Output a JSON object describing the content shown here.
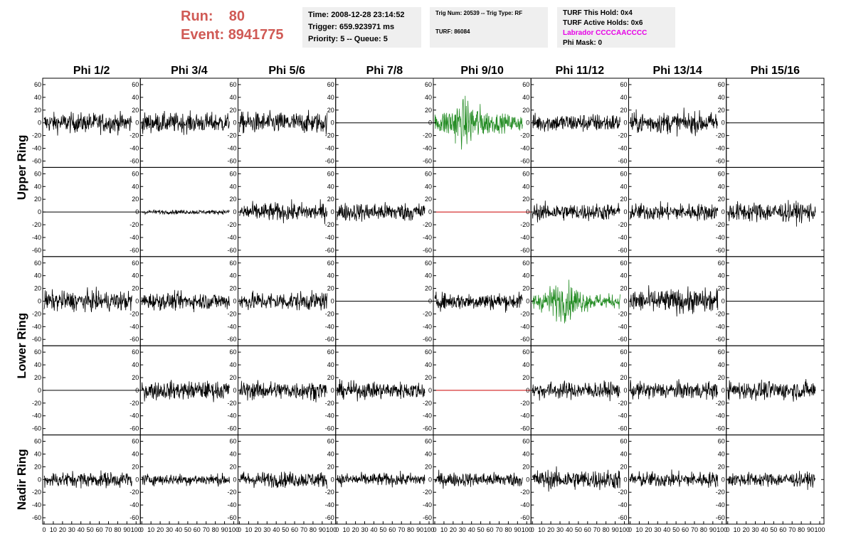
{
  "header": {
    "run_label": "Run:",
    "run_value": "80",
    "event_label": "Event:",
    "event_value": "8941775"
  },
  "info_box_1": {
    "time": "Time: 2008-12-28 23:14:52",
    "trigger": "Trigger: 659.923971 ms",
    "priority": "Priority: 5 -- Queue: 5"
  },
  "info_box_2": {
    "trig": "Trig Num: 20539 -- Trig Type: RF",
    "turf": "TURF: 86084"
  },
  "info_box_3": {
    "this_hold": "TURF This Hold: 0x4",
    "active_holds": "TURF Active Holds: 0x6",
    "labrador": "Labrador CCCCAACCCC",
    "phi_mask": "Phi Mask: 0"
  },
  "colors": {
    "header_red": "#d05a55",
    "labrador_magenta": "#e600e6",
    "trace_normal": "#000000",
    "trace_triggered": "#228b22",
    "trace_dead": "#cc0000"
  },
  "chart_data": {
    "type": "line",
    "columns": [
      "Phi 1/2",
      "Phi 3/4",
      "Phi 5/6",
      "Phi 7/8",
      "Phi 9/10",
      "Phi 11/12",
      "Phi 13/14",
      "Phi 15/16"
    ],
    "ring_labels": [
      "Upper Ring",
      "Lower Ring",
      "Nadir Ring"
    ],
    "ylim": [
      -70,
      70
    ],
    "xlim": [
      0,
      100
    ],
    "yticks": [
      -60,
      -40,
      -20,
      0,
      20,
      40,
      60
    ],
    "xtick_labels": [
      "0",
      "10",
      "20",
      "30",
      "40",
      "50",
      "60",
      "70",
      "80",
      "90",
      "100"
    ],
    "grid": false,
    "rows": [
      {
        "ring": "Upper Ring",
        "sub": 1,
        "panels": [
          {
            "state": "noise",
            "amp": 14
          },
          {
            "state": "noise",
            "amp": 14
          },
          {
            "state": "noise",
            "amp": 15
          },
          {
            "state": "flat",
            "color": "#000000"
          },
          {
            "state": "triggered",
            "amp": 20
          },
          {
            "state": "noise",
            "amp": 13
          },
          {
            "state": "noise",
            "amp": 15
          },
          {
            "state": "flat",
            "color": "#000000"
          }
        ]
      },
      {
        "ring": "Upper Ring",
        "sub": 2,
        "panels": [
          {
            "state": "flat",
            "color": "#000000"
          },
          {
            "state": "noise",
            "amp": 3
          },
          {
            "state": "noise",
            "amp": 13
          },
          {
            "state": "noise",
            "amp": 13
          },
          {
            "state": "flat",
            "color": "#cc0000"
          },
          {
            "state": "noise",
            "amp": 12
          },
          {
            "state": "noise",
            "amp": 12
          },
          {
            "state": "noise",
            "amp": 14
          }
        ]
      },
      {
        "ring": "Lower Ring",
        "sub": 1,
        "panels": [
          {
            "state": "noise",
            "amp": 14
          },
          {
            "state": "noise",
            "amp": 12
          },
          {
            "state": "noise",
            "amp": 13
          },
          {
            "state": "flat",
            "color": "#000000"
          },
          {
            "state": "noise",
            "amp": 12
          },
          {
            "state": "triggered",
            "amp": 16
          },
          {
            "state": "noise",
            "amp": 17
          },
          {
            "state": "flat",
            "color": "#000000"
          }
        ]
      },
      {
        "ring": "Lower Ring",
        "sub": 2,
        "panels": [
          {
            "state": "flat",
            "color": "#000000"
          },
          {
            "state": "noise",
            "amp": 13
          },
          {
            "state": "noise",
            "amp": 13
          },
          {
            "state": "noise",
            "amp": 12
          },
          {
            "state": "flat",
            "color": "#cc0000"
          },
          {
            "state": "noise",
            "amp": 12
          },
          {
            "state": "noise",
            "amp": 12
          },
          {
            "state": "noise",
            "amp": 13
          }
        ]
      },
      {
        "ring": "Nadir Ring",
        "sub": 1,
        "panels": [
          {
            "state": "noise",
            "amp": 11
          },
          {
            "state": "noise",
            "amp": 8
          },
          {
            "state": "noise",
            "amp": 11
          },
          {
            "state": "noise",
            "amp": 9
          },
          {
            "state": "noise",
            "amp": 10
          },
          {
            "state": "noise",
            "amp": 14
          },
          {
            "state": "noise",
            "amp": 11
          },
          {
            "state": "noise",
            "amp": 10
          }
        ]
      }
    ]
  }
}
